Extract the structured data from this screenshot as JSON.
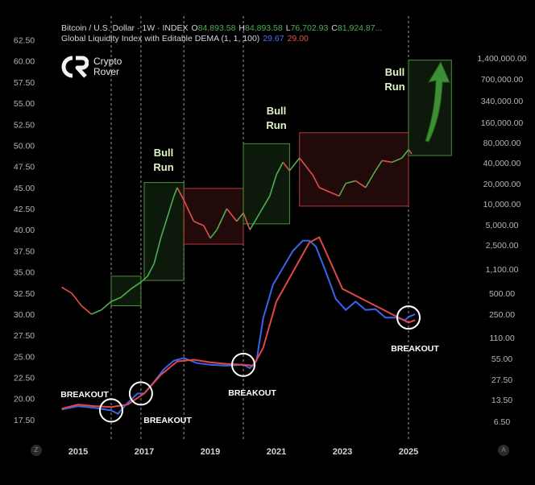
{
  "legend": {
    "line1_prefix": "Bitcoin / U.S. Dollar · 1W · INDEX",
    "o_label": "O",
    "o_value": "84,893.58",
    "h_label": "H",
    "h_value": "84,893.58",
    "l_label": "L",
    "l_value": "76,702.93",
    "c_label": "C",
    "c_value": "81,924.87...",
    "line2_prefix": "Global Liquidity Index with Editable DEMA (1, 1, 100)",
    "gli_value": "29.67",
    "dema_value": "29.00"
  },
  "logo": {
    "line1": "Crypto",
    "line2": "Rover"
  },
  "corner": {
    "left": "Z",
    "right": "A"
  },
  "colors": {
    "background": "#000000",
    "btc_up": "#4caf50",
    "btc_down": "#e05050",
    "gli_line": "#3a63e8",
    "dema_line": "#e04848",
    "bull_box": "#4a8f3e",
    "bear_box": "#b03a3a",
    "legend_green": "#4caf50",
    "legend_blue": "#4f6ef2",
    "legend_red": "#e05050"
  },
  "chart_data": {
    "type": "line",
    "x_tick_labels": [
      "2015",
      "2017",
      "2019",
      "2021",
      "2023",
      "2025"
    ],
    "left_axis": {
      "ylim": [
        15.2,
        63.6
      ],
      "ticks": [
        "62.50",
        "60.00",
        "57.50",
        "55.00",
        "52.50",
        "50.00",
        "47.50",
        "45.00",
        "42.50",
        "40.00",
        "37.50",
        "35.00",
        "32.50",
        "30.00",
        "27.50",
        "25.00",
        "22.50",
        "20.00",
        "17.50"
      ]
    },
    "right_axis": {
      "scale": "log",
      "tick_labels": [
        "1,400,000.00",
        "700,000.00",
        "340,000.00",
        "160,000.00",
        "80,000.00",
        "40,000.00",
        "20,000.00",
        "10,000.00",
        "5,000.00",
        "2,500.00",
        "1,100.00",
        "500.00",
        "250.00",
        "110.00",
        "55.00",
        "27.50",
        "13.50",
        "6.50"
      ]
    },
    "series": [
      {
        "name": "Global Liquidity Index",
        "axis": "left",
        "x": [
          2014.5,
          2015.0,
          2015.5,
          2016.0,
          2016.2,
          2016.5,
          2016.8,
          2017.0,
          2017.3,
          2017.6,
          2017.9,
          2018.2,
          2018.6,
          2019.0,
          2019.5,
          2020.0,
          2020.2,
          2020.4,
          2020.6,
          2020.9,
          2021.2,
          2021.5,
          2021.8,
          2022.0,
          2022.2,
          2022.5,
          2022.8,
          2023.1,
          2023.4,
          2023.7,
          2024.0,
          2024.3,
          2024.6,
          2024.9,
          2025.0,
          2025.2
        ],
        "y": [
          18.7,
          19.1,
          18.9,
          18.6,
          18.2,
          19.5,
          20.6,
          20.6,
          22.0,
          23.5,
          24.5,
          24.8,
          24.2,
          24.0,
          23.9,
          24.0,
          23.6,
          24.5,
          29.5,
          33.5,
          35.5,
          37.5,
          38.7,
          38.7,
          38.0,
          35.0,
          31.8,
          30.5,
          31.5,
          30.5,
          30.6,
          29.6,
          29.6,
          29.3,
          29.67,
          30.0
        ]
      },
      {
        "name": "DEMA",
        "axis": "left",
        "x": [
          2014.5,
          2015.0,
          2015.5,
          2016.0,
          2016.5,
          2017.0,
          2017.5,
          2018.0,
          2018.5,
          2019.0,
          2019.5,
          2020.0,
          2020.3,
          2020.6,
          2021.0,
          2021.5,
          2022.0,
          2022.3,
          2022.6,
          2023.0,
          2023.5,
          2024.0,
          2024.5,
          2025.0,
          2025.2
        ],
        "y": [
          18.8,
          19.3,
          19.1,
          19.0,
          19.3,
          20.6,
          22.8,
          24.4,
          24.6,
          24.3,
          24.1,
          24.0,
          23.9,
          26.0,
          31.5,
          35.0,
          38.5,
          39.1,
          36.5,
          33.0,
          32.0,
          31.0,
          30.0,
          29.0,
          29.3
        ]
      },
      {
        "name": "BTC",
        "axis": "left",
        "x": [
          2014.5,
          2014.8,
          2015.1,
          2015.4,
          2015.7,
          2016.0,
          2016.3,
          2016.6,
          2016.9,
          2017.1,
          2017.3,
          2017.5,
          2017.7,
          2017.9,
          2018.0,
          2018.2,
          2018.5,
          2018.8,
          2019.0,
          2019.2,
          2019.5,
          2019.8,
          2020.0,
          2020.2,
          2020.5,
          2020.8,
          2021.0,
          2021.2,
          2021.4,
          2021.7,
          2021.9,
          2022.1,
          2022.3,
          2022.6,
          2022.9,
          2023.1,
          2023.4,
          2023.7,
          2024.0,
          2024.2,
          2024.5,
          2024.8,
          2025.0,
          2025.1
        ],
        "y": [
          33.2,
          32.5,
          31.0,
          30.0,
          30.5,
          31.5,
          32.0,
          33.0,
          33.8,
          34.5,
          36.0,
          39.0,
          41.5,
          44.0,
          45.0,
          43.5,
          41.0,
          40.5,
          39.0,
          40.0,
          42.5,
          41.0,
          42.0,
          40.0,
          42.0,
          44.0,
          46.5,
          48.0,
          47.0,
          48.5,
          47.5,
          46.5,
          45.0,
          44.5,
          44.0,
          45.5,
          45.8,
          45.0,
          47.0,
          48.2,
          48.0,
          48.5,
          49.5,
          49.0
        ]
      }
    ],
    "annotations": [
      "BREAKOUT",
      "BREAKOUT",
      "BREAKOUT",
      "BREAKOUT",
      "Bull Run",
      "Bull Run",
      "Bull Run"
    ],
    "boxes": [
      {
        "kind": "bull",
        "x": [
          2016.0,
          2016.9
        ],
        "y": [
          31.0,
          34.5
        ]
      },
      {
        "kind": "bull",
        "x": [
          2017.0,
          2018.2
        ],
        "y": [
          34.0,
          45.6
        ]
      },
      {
        "kind": "bear",
        "x": [
          2018.2,
          2020.0
        ],
        "y": [
          38.3,
          44.9
        ]
      },
      {
        "kind": "bull",
        "x": [
          2020.0,
          2021.4
        ],
        "y": [
          40.7,
          50.2
        ]
      },
      {
        "kind": "bear",
        "x": [
          2021.7,
          2025.0
        ],
        "y": [
          42.8,
          51.5
        ]
      },
      {
        "kind": "bull",
        "x": [
          2025.0,
          2026.3
        ],
        "y": [
          48.8,
          60.1
        ]
      }
    ],
    "breakout_circles": [
      {
        "x": 2016.0,
        "y": 18.6
      },
      {
        "x": 2016.9,
        "y": 20.6
      },
      {
        "x": 2020.0,
        "y": 24.0
      },
      {
        "x": 2025.0,
        "y": 29.6
      }
    ],
    "dashed_vlines_x": [
      2016.0,
      2016.9,
      2018.2,
      2020.0,
      2025.0
    ],
    "grid": false
  },
  "labels": {
    "bull_run": [
      "Bull",
      "Run"
    ],
    "breakout": "BREAKOUT"
  }
}
